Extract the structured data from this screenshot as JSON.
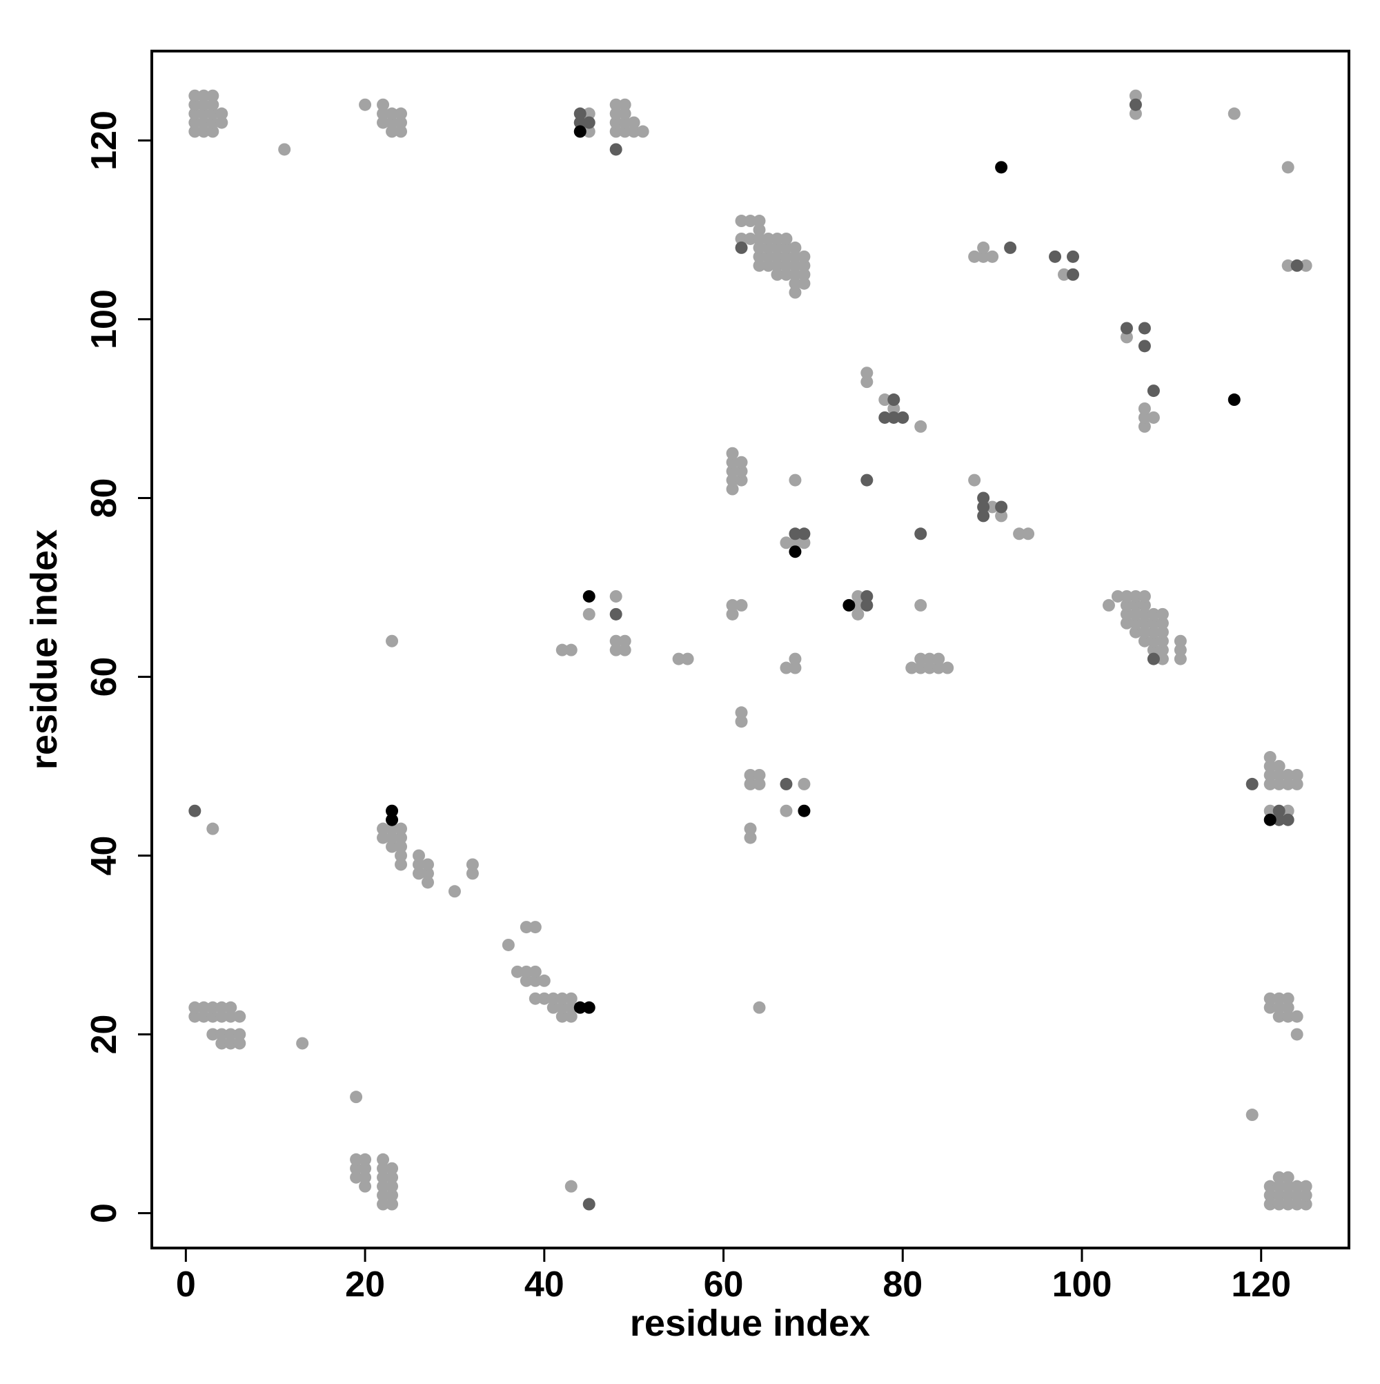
{
  "chart_data": {
    "type": "scatter",
    "x_label": "residue index",
    "y_label": "residue index",
    "xlim": [
      -3.8,
      129.8
    ],
    "ylim": [
      -3.9,
      130
    ],
    "xticks": [
      0,
      20,
      40,
      60,
      80,
      100,
      120
    ],
    "yticks": [
      0,
      20,
      40,
      60,
      80,
      100,
      120
    ],
    "series": [
      {
        "color": "#a3a3a3",
        "x": [
          1,
          1,
          1,
          1,
          1,
          2,
          2,
          2,
          2,
          2,
          3,
          3,
          3,
          3,
          3,
          4,
          4,
          1,
          1,
          2,
          2,
          3,
          3,
          4,
          4,
          5,
          5,
          6,
          3,
          4,
          4,
          5,
          5,
          6,
          6,
          11,
          13,
          19,
          19,
          19,
          19,
          20,
          20,
          20,
          20,
          22,
          22,
          22,
          22,
          22,
          22,
          23,
          23,
          23,
          23,
          23,
          20,
          22,
          22,
          22,
          23,
          23,
          23,
          24,
          24,
          24,
          23,
          3,
          22,
          22,
          23,
          23,
          23,
          24,
          24,
          24,
          24,
          24,
          26,
          26,
          26,
          27,
          27,
          27,
          30,
          32,
          32,
          36,
          38,
          39,
          37,
          38,
          38,
          39,
          39,
          39,
          40,
          40,
          41,
          41,
          42,
          42,
          42,
          43,
          43,
          43,
          43,
          42,
          43,
          45,
          45,
          48,
          48,
          48,
          48,
          49,
          49,
          49,
          49,
          50,
          50,
          51,
          45,
          48,
          48,
          48,
          49,
          49,
          55,
          56,
          61,
          61,
          61,
          61,
          61,
          62,
          62,
          62,
          61,
          61,
          62,
          62,
          62,
          63,
          63,
          63,
          63,
          64,
          64,
          67,
          69,
          64,
          67,
          68,
          68,
          68,
          67,
          68,
          69,
          62,
          62,
          63,
          63,
          64,
          64,
          64,
          64,
          64,
          64,
          65,
          65,
          65,
          65,
          66,
          66,
          66,
          66,
          66,
          67,
          67,
          67,
          67,
          67,
          68,
          68,
          68,
          68,
          68,
          68,
          69,
          69,
          69,
          69,
          75,
          75,
          75,
          76,
          76,
          78,
          79,
          82,
          82,
          81,
          82,
          82,
          83,
          83,
          84,
          84,
          85,
          88,
          90,
          91,
          93,
          94,
          88,
          89,
          89,
          90,
          98,
          105,
          107,
          107,
          107,
          108,
          117,
          106,
          106,
          123,
          123,
          125,
          103,
          104,
          105,
          105,
          105,
          105,
          106,
          106,
          106,
          106,
          106,
          107,
          107,
          107,
          107,
          107,
          107,
          108,
          108,
          108,
          108,
          108,
          109,
          109,
          109,
          109,
          109,
          109,
          111,
          111,
          111,
          119,
          121,
          121,
          121,
          121,
          121,
          122,
          122,
          122,
          123,
          123,
          123,
          124,
          124,
          121,
          121,
          122,
          122,
          122,
          123,
          123,
          123,
          124,
          124,
          121,
          121,
          121,
          122,
          122,
          122,
          122,
          123,
          123,
          123,
          123,
          124,
          124,
          124,
          125,
          125,
          125
        ],
        "y": [
          121,
          122,
          123,
          124,
          125,
          121,
          122,
          123,
          124,
          125,
          121,
          122,
          123,
          124,
          125,
          122,
          123,
          22,
          23,
          22,
          23,
          22,
          23,
          22,
          23,
          22,
          23,
          22,
          20,
          19,
          20,
          19,
          20,
          19,
          20,
          119,
          19,
          13,
          4,
          5,
          6,
          3,
          4,
          5,
          6,
          1,
          2,
          3,
          4,
          5,
          6,
          1,
          2,
          3,
          4,
          5,
          124,
          122,
          123,
          124,
          121,
          122,
          123,
          121,
          122,
          123,
          64,
          43,
          42,
          43,
          41,
          42,
          43,
          39,
          40,
          41,
          42,
          43,
          38,
          39,
          40,
          37,
          38,
          39,
          36,
          38,
          39,
          30,
          32,
          32,
          27,
          26,
          27,
          24,
          26,
          27,
          24,
          26,
          23,
          24,
          22,
          23,
          24,
          22,
          23,
          24,
          3,
          63,
          63,
          121,
          123,
          121,
          122,
          123,
          124,
          121,
          122,
          123,
          124,
          121,
          122,
          121,
          67,
          69,
          63,
          64,
          63,
          64,
          62,
          62,
          81,
          82,
          83,
          84,
          85,
          82,
          83,
          84,
          67,
          68,
          68,
          55,
          56,
          42,
          43,
          48,
          49,
          48,
          49,
          45,
          48,
          23,
          61,
          61,
          62,
          82,
          75,
          75,
          75,
          109,
          111,
          109,
          111,
          106,
          107,
          108,
          109,
          110,
          111,
          106,
          107,
          108,
          109,
          105,
          106,
          107,
          108,
          109,
          105,
          106,
          107,
          108,
          109,
          103,
          104,
          105,
          106,
          107,
          108,
          104,
          105,
          106,
          107,
          67,
          68,
          69,
          93,
          94,
          91,
          90,
          88,
          68,
          61,
          61,
          62,
          61,
          62,
          61,
          62,
          61,
          82,
          79,
          78,
          76,
          76,
          107,
          107,
          108,
          107,
          105,
          98,
          88,
          89,
          90,
          89,
          123,
          123,
          125,
          117,
          106,
          106,
          68,
          69,
          66,
          67,
          68,
          69,
          65,
          66,
          67,
          68,
          69,
          64,
          65,
          66,
          67,
          68,
          69,
          63,
          64,
          65,
          66,
          67,
          62,
          63,
          64,
          65,
          66,
          67,
          62,
          63,
          64,
          11,
          45,
          48,
          49,
          50,
          51,
          48,
          49,
          50,
          45,
          48,
          49,
          48,
          49,
          23,
          24,
          22,
          23,
          24,
          22,
          23,
          24,
          22,
          20,
          1,
          2,
          3,
          1,
          2,
          3,
          4,
          1,
          2,
          3,
          4,
          1,
          2,
          3,
          1,
          2,
          3
        ]
      },
      {
        "color": "#5e5e5e",
        "x": [
          1,
          44,
          44,
          45,
          45,
          48,
          48,
          67,
          68,
          69,
          76,
          76,
          76,
          78,
          79,
          79,
          80,
          82,
          89,
          89,
          89,
          91,
          92,
          97,
          99,
          99,
          105,
          107,
          107,
          108,
          106,
          124,
          62,
          108,
          119,
          122,
          123,
          122
        ],
        "y": [
          45,
          122,
          123,
          122,
          1,
          119,
          67,
          48,
          76,
          76,
          68,
          69,
          82,
          89,
          89,
          91,
          89,
          76,
          78,
          79,
          80,
          79,
          108,
          107,
          105,
          107,
          99,
          99,
          97,
          92,
          124,
          106,
          108,
          62,
          48,
          44,
          44,
          45
        ]
      },
      {
        "color": "#000000",
        "x": [
          23,
          23,
          44,
          45,
          44,
          45,
          69,
          68,
          74,
          91,
          117,
          121
        ],
        "y": [
          45,
          44,
          23,
          23,
          121,
          69,
          45,
          74,
          68,
          117,
          91,
          44
        ]
      }
    ]
  }
}
